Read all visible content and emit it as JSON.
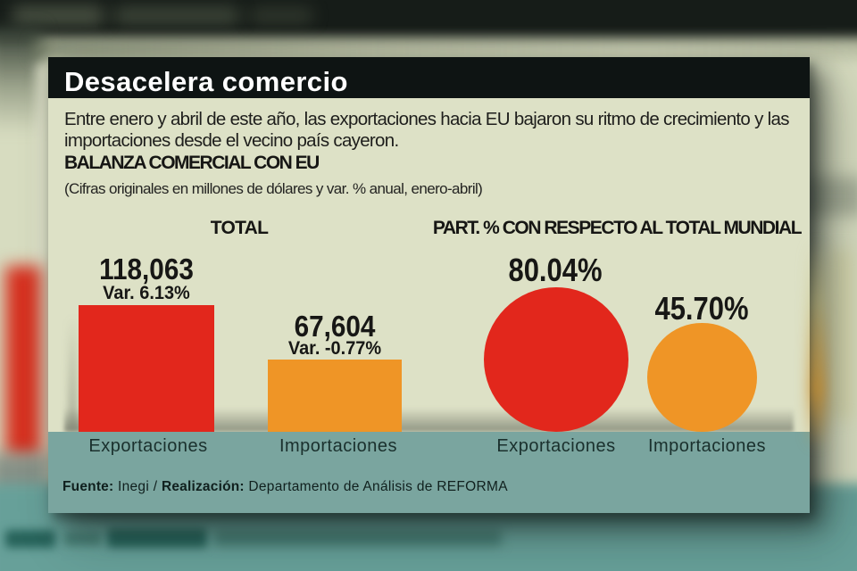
{
  "colors": {
    "card_background": "#dde1c6",
    "header_bar": "#0e1413",
    "footer_band": "#7aa59f",
    "export_red": "#e2271c",
    "import_orange": "#ef9526",
    "title_text": "#ffffff",
    "body_text": "#1e1e1c",
    "backdrop_teal": "#67a099"
  },
  "card": {
    "title": "Desacelera comercio",
    "intro_line1": "Entre enero y abril de este año, las exportaciones hacia EU bajaron su ritmo de crecimiento y las",
    "intro_line2": "importaciones desde el vecino país cayeron.",
    "subtitle": "BALANZA COMERCIAL CON EU",
    "note": "(Cifras originales en millones de dólares y var. % anual, enero-abril)",
    "footer": {
      "source_label": "Fuente:",
      "source_value": "Inegi",
      "separator": "/",
      "realization_label": "Realización:",
      "realization_value": "Departamento de Análisis de REFORMA"
    }
  },
  "chart_data": {
    "type": "bar",
    "title": "BALANZA COMERCIAL CON EU",
    "subtitle": "(Cifras originales en millones de dólares y var. % anual, enero-abril)",
    "groups": [
      {
        "title": "TOTAL",
        "type": "bar",
        "unit": "millones de dólares",
        "categories": [
          "Exportaciones",
          "Importaciones"
        ],
        "values": [
          118063,
          67604
        ],
        "items": [
          {
            "label": "Exportaciones",
            "value": 118063,
            "value_label": "118,063",
            "var_label": "Var. 6.13%",
            "var_pct": 6.13,
            "color": "#e2271c"
          },
          {
            "label": "Importaciones",
            "value": 67604,
            "value_label": "67,604",
            "var_label": "Var. -0.77%",
            "var_pct": -0.77,
            "color": "#ef9526"
          }
        ]
      },
      {
        "title": "PART. % CON RESPECTO AL TOTAL MUNDIAL",
        "type": "proportional-circle",
        "unit": "%",
        "categories": [
          "Exportaciones",
          "Importaciones"
        ],
        "values": [
          80.04,
          45.7
        ],
        "items": [
          {
            "label": "Exportaciones",
            "value": 80.04,
            "value_label": "80.04%",
            "color": "#e2271c"
          },
          {
            "label": "Importaciones",
            "value": 45.7,
            "value_label": "45.70%",
            "color": "#ef9526"
          }
        ]
      }
    ]
  }
}
